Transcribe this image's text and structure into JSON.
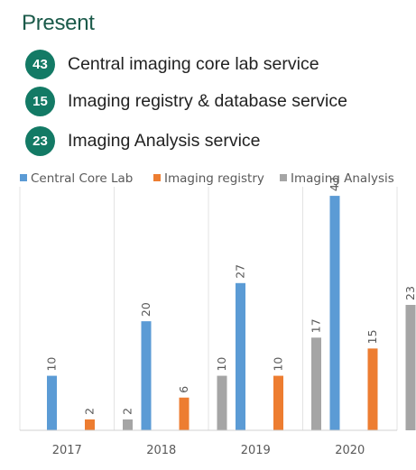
{
  "header": {
    "title": "Present",
    "stats": [
      {
        "value": "43",
        "label": "Central imaging core lab service"
      },
      {
        "value": "15",
        "label": "Imaging registry & database service"
      },
      {
        "value": "23",
        "label": "Imaging Analysis service"
      }
    ]
  },
  "chart_data": {
    "type": "bar",
    "categories": [
      "2017",
      "2018",
      "2019",
      "2020"
    ],
    "series": [
      {
        "name": "Central Core Lab",
        "color": "#5b9bd5",
        "values": [
          10,
          20,
          27,
          43
        ]
      },
      {
        "name": "Imaging registry",
        "color": "#ed7d31",
        "values": [
          2,
          6,
          10,
          15
        ]
      },
      {
        "name": "Imaging Analysis",
        "color": "#a5a5a5",
        "values": [
          2,
          10,
          17,
          23
        ]
      }
    ],
    "ylim": [
      0,
      45
    ],
    "legend": "top",
    "grid": "vertical category separators",
    "data_labels": "rotated, above bars"
  }
}
